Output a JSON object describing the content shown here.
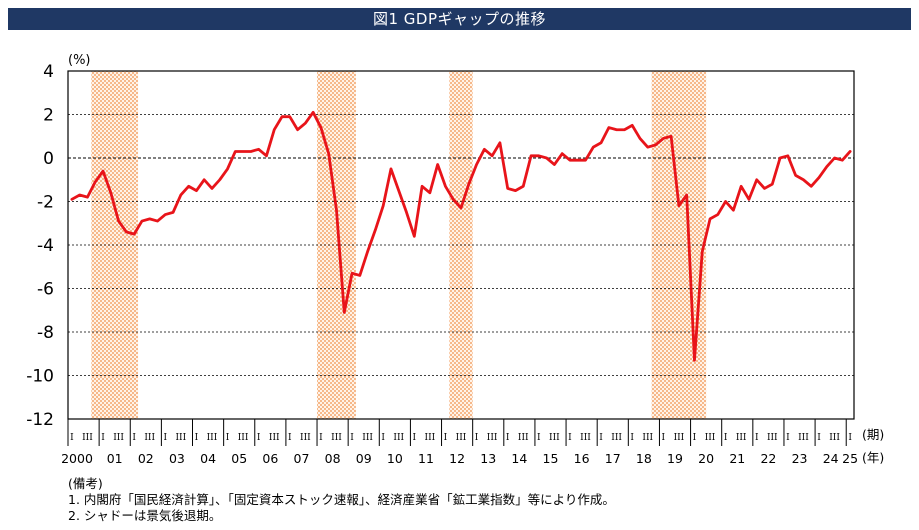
{
  "title": "図1 GDPギャップの推移",
  "notes": {
    "heading": "(備考)",
    "items": [
      "1.  内閣府「国民経済計算」、「固定資本ストック速報」、経済産業省「鉱工業指数」等により作成。",
      "2.  シャドーは景気後退期。"
    ]
  },
  "colors": {
    "line": "#e8141a",
    "shade": "#f6b88a",
    "title_bg": "#1f3864"
  },
  "chart_data": {
    "type": "line",
    "title": "",
    "ylabel": "(%)",
    "ylim": [
      -12,
      4
    ],
    "yticks": [
      4,
      2,
      0,
      -2,
      -4,
      -6,
      -8,
      -10,
      -12
    ],
    "ytick_labels": [
      "4",
      "2",
      "0",
      "-2",
      "-4",
      "-6",
      "-8",
      "-10",
      "-12"
    ],
    "grid": true,
    "quarter_label": "(期)",
    "year_label": "(年)",
    "quarter_tick_labels": [
      "I",
      "III"
    ],
    "x_start": "2000 Q1",
    "x_end": "2025 Q2",
    "year_labels": [
      "2000",
      "01",
      "02",
      "03",
      "04",
      "05",
      "06",
      "07",
      "08",
      "09",
      "10",
      "11",
      "12",
      "13",
      "14",
      "15",
      "16",
      "17",
      "18",
      "19",
      "20",
      "21",
      "22",
      "23",
      "24",
      "25"
    ],
    "recessions": [
      {
        "start": "2000 Q4",
        "end": "2002 Q1"
      },
      {
        "start": "2008 Q1",
        "end": "2009 Q1"
      },
      {
        "start": "2012 Q2",
        "end": "2012 Q4"
      },
      {
        "start": "2018 Q4",
        "end": "2020 Q2"
      }
    ],
    "series": [
      {
        "values": [
          -1.9,
          -1.7,
          -1.8,
          -1.1,
          -0.6,
          -1.6,
          -2.9,
          -3.4,
          -3.5,
          -2.9,
          -2.8,
          -2.9,
          -2.6,
          -2.5,
          -1.7,
          -1.3,
          -1.5,
          -1.0,
          -1.4,
          -1.0,
          -0.5,
          0.3,
          0.3,
          0.3,
          0.4,
          0.1,
          1.3,
          1.9,
          1.9,
          1.3,
          1.6,
          2.1,
          1.4,
          0.2,
          -2.4,
          -7.1,
          -5.3,
          -5.4,
          -4.3,
          -3.3,
          -2.2,
          -0.5,
          -1.5,
          -2.5,
          -3.6,
          -1.3,
          -1.6,
          -0.3,
          -1.3,
          -1.9,
          -2.3,
          -1.2,
          -0.3,
          0.4,
          0.1,
          0.7,
          -1.4,
          -1.5,
          -1.3,
          0.1,
          0.1,
          0.0,
          -0.3,
          0.2,
          -0.1,
          -0.1,
          -0.1,
          0.5,
          0.7,
          1.4,
          1.3,
          1.3,
          1.5,
          0.9,
          0.5,
          0.6,
          0.9,
          1.0,
          -2.2,
          -1.7,
          -9.3,
          -4.3,
          -2.8,
          -2.6,
          -2.0,
          -2.4,
          -1.3,
          -1.9,
          -1.0,
          -1.4,
          -1.2,
          0.0,
          0.1,
          -0.8,
          -1.0,
          -1.3,
          -0.9,
          -0.4,
          0.0,
          -0.1,
          0.3
        ]
      }
    ]
  }
}
